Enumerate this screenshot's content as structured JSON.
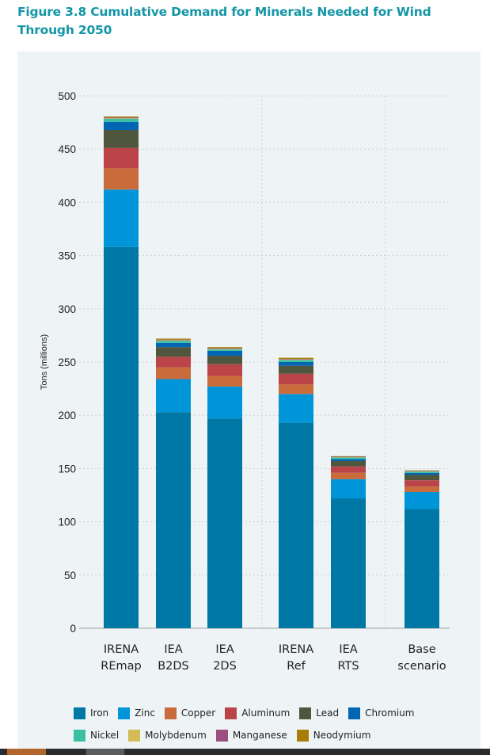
{
  "figure": {
    "title": "Figure 3.8 Cumulative Demand for Minerals Needed for Wind Through 2050"
  },
  "chart_data": {
    "type": "bar",
    "stacked": true,
    "title": "Figure 3.8 Cumulative Demand for Minerals Needed for Wind Through 2050",
    "xlabel": "",
    "ylabel": "Tons (millions)",
    "ylim": [
      0,
      500
    ],
    "yticks": [
      0,
      50,
      100,
      150,
      200,
      250,
      300,
      350,
      400,
      450,
      500
    ],
    "grid": "dotted horizontal",
    "legend_position": "bottom",
    "categories": [
      [
        "IRENA",
        "REmap"
      ],
      [
        "IEA",
        "B2DS"
      ],
      [
        "IEA",
        "2DS"
      ],
      [
        "IRENA",
        "Ref"
      ],
      [
        "IEA",
        "RTS"
      ],
      [
        "Base",
        "scenario"
      ]
    ],
    "series": [
      {
        "name": "Iron",
        "color": "#0078a6",
        "values": [
          358,
          203,
          197,
          193,
          122,
          112
        ]
      },
      {
        "name": "Zinc",
        "color": "#0095d9",
        "values": [
          54,
          31,
          30,
          27,
          18,
          16
        ]
      },
      {
        "name": "Copper",
        "color": "#c96b3b",
        "values": [
          20,
          11,
          10,
          9,
          6,
          5
        ]
      },
      {
        "name": "Aluminum",
        "color": "#bb4449",
        "values": [
          19,
          10,
          11,
          10,
          6,
          6
        ]
      },
      {
        "name": "Lead",
        "color": "#50553e",
        "values": [
          17,
          9,
          8,
          7.5,
          5,
          5
        ]
      },
      {
        "name": "Chromium",
        "color": "#0066b3",
        "values": [
          7.5,
          4,
          4.5,
          3.5,
          2,
          2
        ]
      },
      {
        "name": "Nickel",
        "color": "#3bbfa4",
        "values": [
          3,
          2,
          1.5,
          2,
          1.5,
          1.2
        ]
      },
      {
        "name": "Molybdenum",
        "color": "#d4bb55",
        "values": [
          0.5,
          0.5,
          0.5,
          0.5,
          0.3,
          0.3
        ]
      },
      {
        "name": "Manganese",
        "color": "#9a4f80",
        "values": [
          0.6,
          0.5,
          0.5,
          0.5,
          0.3,
          0.3
        ]
      },
      {
        "name": "Neodymium",
        "color": "#a87c06",
        "values": [
          1,
          1,
          1,
          1,
          0.5,
          0.5
        ]
      }
    ],
    "group_separators_after": [
      2,
      4
    ]
  },
  "legend": {
    "rows": [
      [
        "Iron",
        "Zinc",
        "Copper",
        "Aluminum",
        "Lead",
        "Chromium"
      ],
      [
        "Nickel",
        "Molybdenum",
        "Manganese",
        "Neodymium"
      ]
    ]
  }
}
